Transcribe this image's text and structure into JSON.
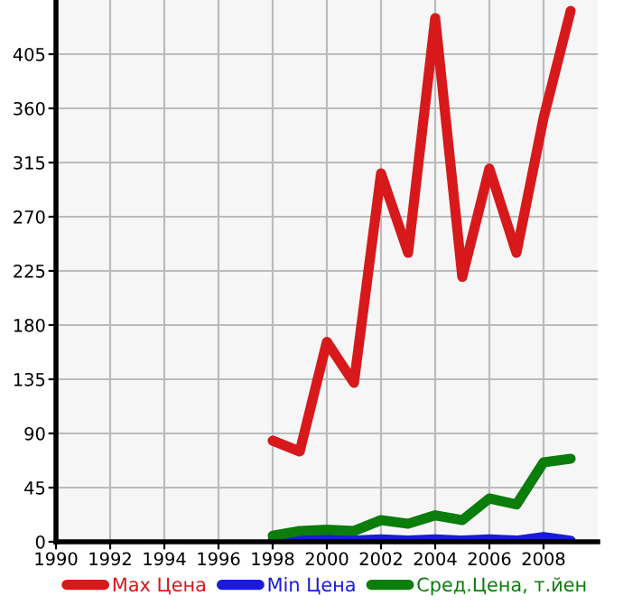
{
  "chart_data": {
    "type": "line",
    "x": [
      1998,
      1999,
      2000,
      2001,
      2002,
      2003,
      2004,
      2005,
      2006,
      2007,
      2008,
      2009
    ],
    "series": [
      {
        "name": "Max Цена",
        "color": "#d7191c",
        "values": [
          84,
          75,
          166,
          132,
          306,
          240,
          435,
          220,
          310,
          240,
          352,
          441
        ]
      },
      {
        "name": "Min Цена",
        "color": "#1a1adb",
        "values": [
          1,
          1,
          2,
          1,
          2,
          1,
          2,
          1,
          2,
          1,
          4,
          1
        ]
      },
      {
        "name": "Сред.Цена, т.йен",
        "color": "#0a7d0a",
        "values": [
          5,
          9,
          10,
          9,
          18,
          15,
          22,
          18,
          36,
          31,
          66,
          69
        ]
      }
    ],
    "xlim": [
      1990,
      2010
    ],
    "xticks": [
      1990,
      1992,
      1994,
      1996,
      1998,
      2000,
      2002,
      2004,
      2006,
      2008
    ],
    "ylim": [
      0,
      450
    ],
    "yticks": [
      0,
      45,
      90,
      135,
      180,
      225,
      270,
      315,
      360,
      405
    ],
    "grid": true,
    "legend": "bottom",
    "marker": "none",
    "line_style": "solid"
  }
}
